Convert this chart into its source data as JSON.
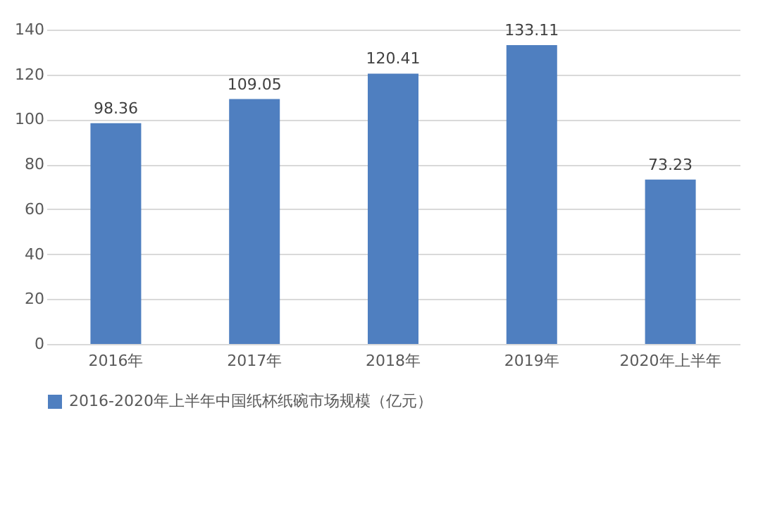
{
  "chart_data": {
    "type": "bar",
    "categories": [
      "2016年",
      "2017年",
      "2018年",
      "2019年",
      "2020年上半年"
    ],
    "series": [
      {
        "name": "2016-2020年上半年中国纸杯纸碗市场规模（亿元）",
        "color": "#4f7fc0",
        "values": [
          98.36,
          109.05,
          120.41,
          133.11,
          73.23
        ]
      }
    ],
    "ylim": [
      0,
      140
    ],
    "yticks": [
      0,
      20,
      40,
      60,
      80,
      100,
      120,
      140
    ],
    "grid": "y",
    "legend": "bottom",
    "data_labels": true
  }
}
